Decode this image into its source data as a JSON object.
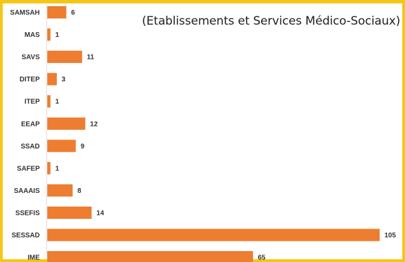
{
  "page": {
    "background_color": "#f5c518",
    "panel_color": "#ffffff"
  },
  "chart_data": {
    "type": "bar",
    "orientation": "horizontal",
    "title": "",
    "subtitle": "(Etablissements et Services Médico-Sociaux)",
    "xlabel": "",
    "ylabel": "",
    "categories": [
      "SAMSAH",
      "MAS",
      "SAVS",
      "DITEP",
      "ITEP",
      "EEAP",
      "SSAD",
      "SAFEP",
      "SAAAIS",
      "SSEFIS",
      "SESSAD",
      "IME"
    ],
    "values": [
      6,
      1,
      11,
      3,
      1,
      12,
      9,
      1,
      8,
      14,
      105,
      65
    ],
    "value_labels": [
      "6",
      "1",
      "11",
      "3",
      "1",
      "12",
      "9",
      "1",
      "8",
      "14",
      "105",
      "65"
    ],
    "xlim": [
      0,
      105
    ],
    "bar_color": "#ed7d31",
    "grid": false,
    "legend": "none",
    "data_labels": "outside-end"
  }
}
